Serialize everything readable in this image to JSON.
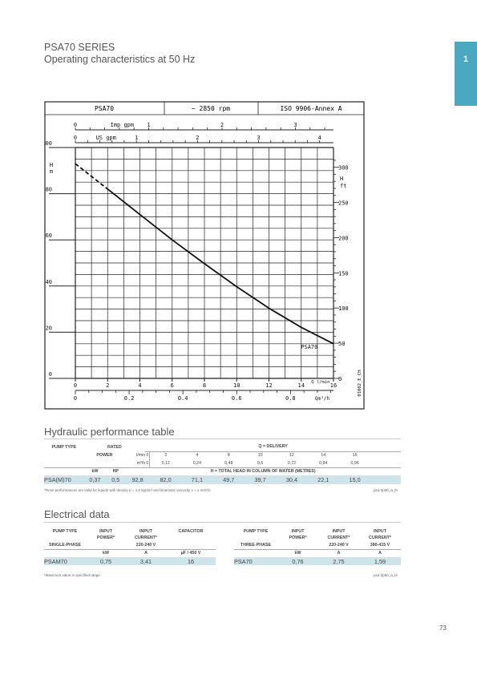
{
  "header": {
    "series": "PSA70 SERIES",
    "subtitle": "Operating characteristics at 50 Hz"
  },
  "chapter_tab": "1",
  "chart_data": {
    "type": "line",
    "title_cells": [
      "PSA70",
      "~ 2850 rpm",
      "ISO 9906-Annex A"
    ],
    "series": [
      {
        "name": "PSA70",
        "x": [
          0,
          2,
          4,
          6,
          8,
          10,
          12,
          14,
          16
        ],
        "y": [
          93,
          82,
          71,
          60,
          49.7,
          39.7,
          30.4,
          22.1,
          15
        ],
        "dashed_until_x": 2
      }
    ],
    "y_left": {
      "label_lines": [
        "H",
        "m"
      ],
      "ticks": [
        0,
        20,
        40,
        60,
        80,
        100
      ],
      "range": [
        0,
        100
      ]
    },
    "y_right": {
      "label_lines": [
        "H",
        "ft"
      ],
      "ticks": [
        0,
        50,
        100,
        150,
        200,
        250,
        300
      ]
    },
    "x_lmin": {
      "unit": "Q l/min",
      "ticks": [
        0,
        2,
        4,
        6,
        8,
        10,
        12,
        14,
        16
      ],
      "range": [
        0,
        16
      ]
    },
    "x_m3h": {
      "unit": "Qm³/h",
      "ticks": [
        "0",
        "0.2",
        "0.4",
        "0.6",
        "0.8"
      ],
      "values": [
        0,
        0.2,
        0.4,
        0.6,
        0.8
      ]
    },
    "x_imp": {
      "unit": "Imp gpm",
      "ticks": [
        0,
        1,
        2,
        3
      ]
    },
    "x_us": {
      "unit": "US gpm",
      "ticks": [
        0,
        1,
        2,
        3,
        4
      ]
    },
    "side_code": "01002_E_CH",
    "grid": true
  },
  "hydraulic": {
    "title": "Hydraulic performance table",
    "h_pump_type": "PUMP TYPE",
    "h_rated": "RATED",
    "h_power": "POWER",
    "h_q": "Q = DELIVERY",
    "u_lmin": "l/min",
    "u_m3h": "m³/h",
    "lmin": [
      "0",
      "2",
      "4",
      "8",
      "10",
      "12",
      "14",
      "16"
    ],
    "m3h": [
      "0",
      "0,12",
      "0,24",
      "0,48",
      "0,6",
      "0,72",
      "0,84",
      "0,96"
    ],
    "u_kw": "kW",
    "u_hp": "HP",
    "h_head": "H = TOTAL HEAD IN COLUMN OF WATER (METRES)",
    "row": {
      "type": "PSA(M)70",
      "kw": "0,37",
      "hp": "0,5",
      "h": [
        "92,8",
        "82,0",
        "71,1",
        "49,7",
        "39,7",
        "30,4",
        "22,1",
        "15,0"
      ]
    },
    "note": "These performances are valid for liquids with density ρ = 1.0 kg/dm³ and kinematic viscosity ν = 1 mm²/s.",
    "code": "psa-2p50_a_th"
  },
  "electrical": {
    "title": "Electrical data",
    "left": {
      "h_type": "PUMP TYPE",
      "h_input1": "INPUT",
      "h_power": "POWER*",
      "h_input2": "INPUT",
      "h_current": "CURRENT*",
      "h_cap": "CAPACITOR",
      "phase": "SINGLE-PHASE",
      "voltage": "220-240 V",
      "u_kw": "kW",
      "u_a": "A",
      "u_cap": "µF / 450 V",
      "row": {
        "type": "PSAM70",
        "power": "0,75",
        "current": "3,41",
        "cap": "16"
      }
    },
    "right": {
      "h_type": "PUMP TYPE",
      "h_input1": "INPUT",
      "h_power": "POWER*",
      "h_input2": "INPUT",
      "h_current2": "CURRENT*",
      "h_input3": "INPUT",
      "h_current3": "CURRENT*",
      "phase": "THREE-PHASE",
      "voltage1": "220-240 V",
      "voltage2": "380-415 V",
      "u_kw": "kW",
      "u_a1": "A",
      "u_a2": "A",
      "row": {
        "type": "PSA70",
        "power": "0,76",
        "current1": "2,75",
        "current2": "1,59"
      }
    },
    "note": "*Maximum value in specified range",
    "code": "psa-2p50_a_te"
  },
  "page_number": "73"
}
